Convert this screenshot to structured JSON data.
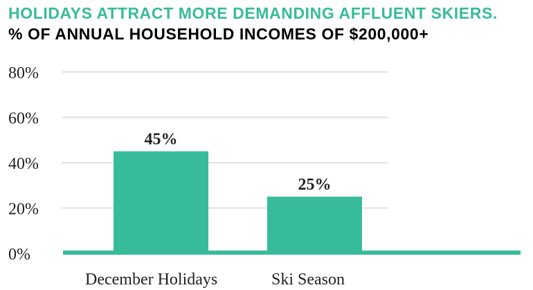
{
  "chart_data": {
    "type": "bar",
    "title": "HOLIDAYS ATTRACT MORE DEMANDING AFFLUENT SKIERS.",
    "subtitle": "% OF ANNUAL HOUSEHOLD INCOMES OF $200,000+",
    "categories": [
      "December Holidays",
      "Ski Season"
    ],
    "values": [
      45,
      25
    ],
    "data_labels": [
      "45%",
      "25%"
    ],
    "yticks": [
      0,
      20,
      40,
      60,
      80
    ],
    "ytick_labels": [
      "0%",
      "20%",
      "40%",
      "60%",
      "80%"
    ],
    "ylim": [
      0,
      80
    ],
    "grid": true,
    "colors": {
      "bar": "#37bb9b",
      "title": "#37bb9b",
      "grid": "#e0e0e0"
    }
  }
}
